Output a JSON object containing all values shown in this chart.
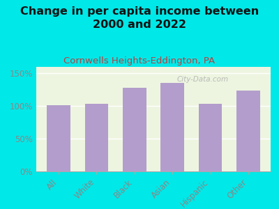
{
  "title": "Change in per capita income between\n2000 and 2022",
  "subtitle": "Cornwells Heights-Eddington, PA",
  "categories": [
    "All",
    "White",
    "Black",
    "Asian",
    "Hispanic",
    "Other"
  ],
  "values": [
    101,
    104,
    128,
    136,
    104,
    124
  ],
  "bar_color": "#b39dcc",
  "background_outer": "#00e8e8",
  "background_inner": "#edf5e0",
  "title_fontsize": 11.5,
  "subtitle_fontsize": 9.5,
  "subtitle_color": "#b84040",
  "ylabel_ticks": [
    0,
    50,
    100,
    150
  ],
  "ylim": [
    0,
    160
  ],
  "watermark": "City-Data.com",
  "watermark_color": "#b0b0b0",
  "tick_color": "#888888"
}
